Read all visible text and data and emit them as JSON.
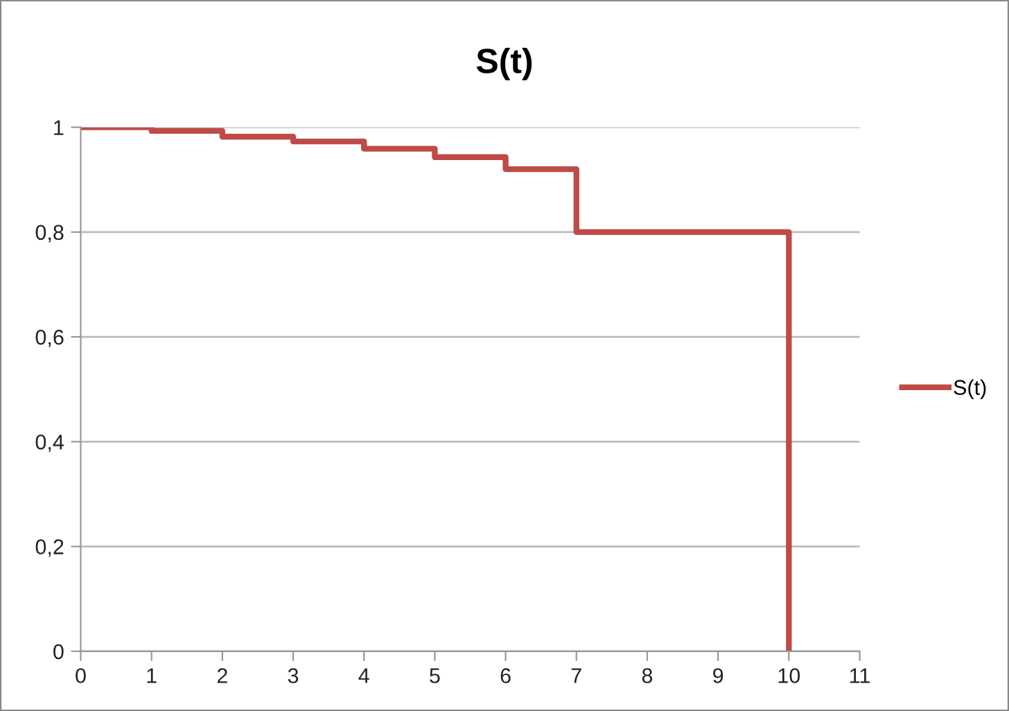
{
  "chart_data": {
    "type": "step",
    "title": "S(t)",
    "x": [
      0,
      1,
      2,
      3,
      4,
      5,
      6,
      7,
      8,
      9,
      10
    ],
    "series": [
      {
        "name": "S(t)",
        "color": "#be4b48",
        "values": [
          1,
          0.993,
          0.982,
          0.973,
          0.959,
          0.943,
          0.92,
          0.8,
          0.8,
          0.8,
          0
        ]
      }
    ],
    "xlim": [
      0,
      11
    ],
    "xticks": [
      0,
      1,
      2,
      3,
      4,
      5,
      6,
      7,
      8,
      9,
      10,
      11
    ],
    "ylim": [
      0,
      1
    ],
    "yticks": [
      0,
      {
        "value": 0.2,
        "label": "0,2"
      },
      {
        "value": 0.4,
        "label": "0,4"
      },
      {
        "value": 0.6,
        "label": "0,6"
      },
      {
        "value": 0.8,
        "label": "0,8"
      },
      1
    ],
    "grid": "y",
    "legend": "right",
    "marker": "none",
    "line_style": "solid"
  }
}
